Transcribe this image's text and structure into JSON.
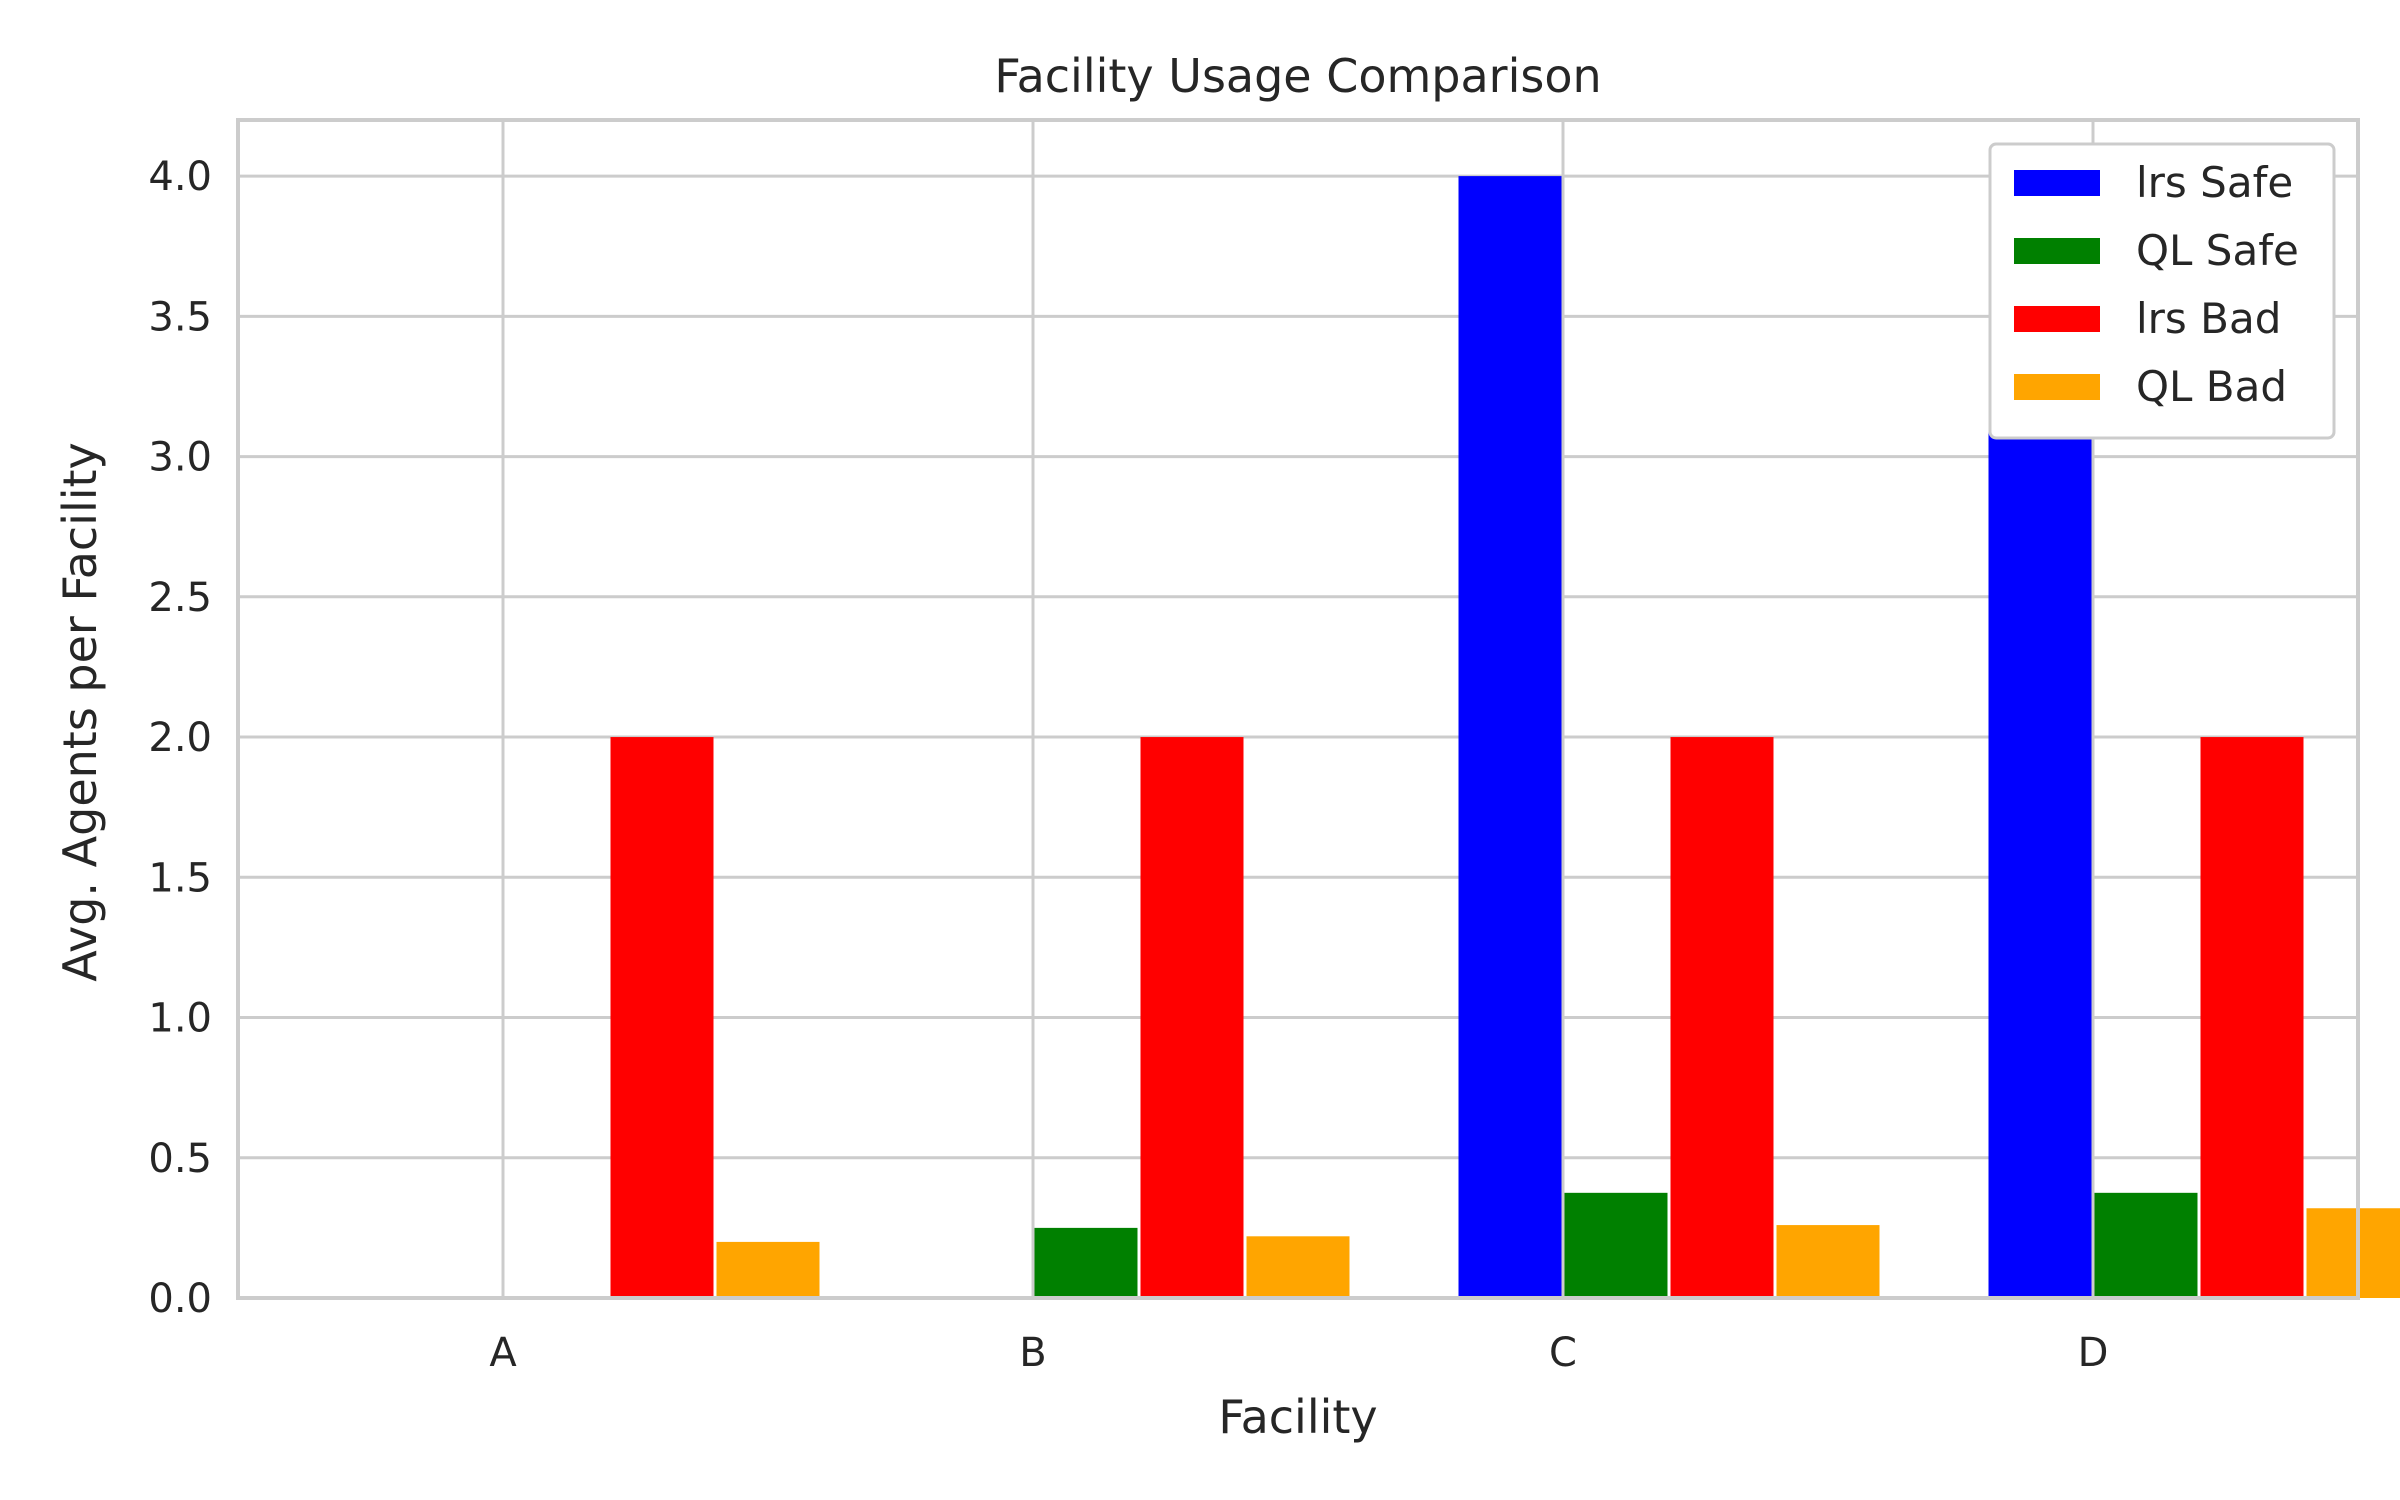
{
  "chart_data": {
    "type": "bar",
    "title": "Facility Usage Comparison",
    "xlabel": "Facility",
    "ylabel": "Avg. Agents per Facility",
    "categories": [
      "A",
      "B",
      "C",
      "D"
    ],
    "ylim": [
      0,
      4.2
    ],
    "yticks": [
      0.0,
      0.5,
      1.0,
      1.5,
      2.0,
      2.5,
      3.0,
      3.5,
      4.0
    ],
    "ytick_labels": [
      "0.0",
      "0.5",
      "1.0",
      "1.5",
      "2.0",
      "2.5",
      "3.0",
      "3.5",
      "4.0"
    ],
    "grid": true,
    "legend_position": "top-right",
    "series": [
      {
        "name": "lrs Safe",
        "color": "#0000ff",
        "values": [
          0,
          0,
          4.0,
          4.0
        ]
      },
      {
        "name": "QL Safe",
        "color": "#008000",
        "values": [
          0,
          0.25,
          0.375,
          0.375
        ]
      },
      {
        "name": "lrs Bad",
        "color": "#ff0000",
        "values": [
          2.0,
          2.0,
          2.0,
          2.0
        ]
      },
      {
        "name": "QL Bad",
        "color": "#ffa500",
        "values": [
          0.2,
          0.22,
          0.26,
          0.32
        ]
      }
    ]
  }
}
